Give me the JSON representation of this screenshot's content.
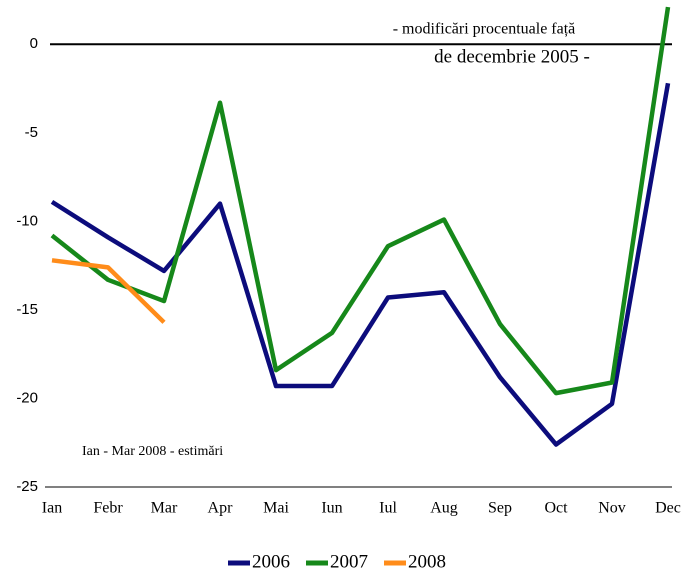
{
  "chart_data": {
    "type": "line",
    "annotations": [
      "- modificări procentuale față",
      "de decembrie 2005 -",
      "Ian - Mar 2008 - estimări"
    ],
    "categories": [
      "Ian",
      "Febr",
      "Mar",
      "Apr",
      "Mai",
      "Iun",
      "Iul",
      "Aug",
      "Sep",
      "Oct",
      "Nov",
      "Dec"
    ],
    "series": [
      {
        "name": "2006",
        "color": "#0c0c7c",
        "values": [
          -8.9,
          -10.9,
          -12.8,
          -9.0,
          -19.3,
          -19.3,
          -14.3,
          -14.0,
          -18.8,
          -22.6,
          -20.3,
          -2.2
        ]
      },
      {
        "name": "2007",
        "color": "#16881a",
        "values": [
          -10.8,
          -13.3,
          -14.5,
          -3.3,
          -18.4,
          -16.3,
          -11.4,
          -9.9,
          -15.8,
          -19.7,
          -19.1,
          2.1
        ]
      },
      {
        "name": "2008",
        "color": "#ff8c1a",
        "values": [
          -12.2,
          -12.6,
          -15.7,
          null,
          null,
          null,
          null,
          null,
          null,
          null,
          null,
          null
        ]
      }
    ],
    "ylim": [
      -25,
      2.5
    ],
    "yticks": [
      -25,
      -20,
      -15,
      -10,
      -5,
      0
    ],
    "legend": "bottom"
  }
}
